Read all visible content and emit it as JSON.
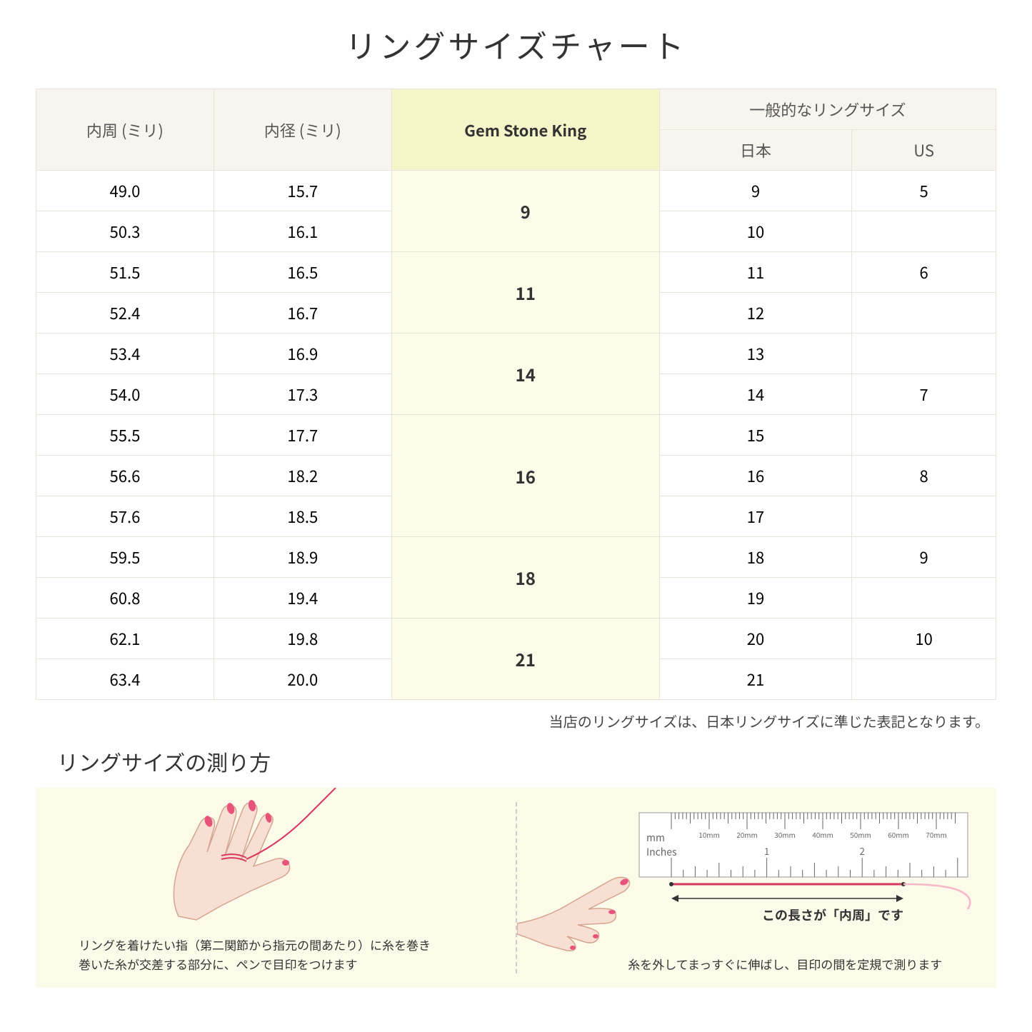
{
  "title": "リングサイズチャート",
  "headers": {
    "circumference": "内周 (ミリ)",
    "diameter": "内径 (ミリ)",
    "gsk": "Gem Stone King",
    "common": "一般的なリングサイズ",
    "japan": "日本",
    "us": "US"
  },
  "rows": [
    {
      "circ": "49.0",
      "diam": "15.7",
      "jp": "9",
      "us": "5"
    },
    {
      "circ": "50.3",
      "diam": "16.1",
      "jp": "10",
      "us": ""
    },
    {
      "circ": "51.5",
      "diam": "16.5",
      "jp": "11",
      "us": "6"
    },
    {
      "circ": "52.4",
      "diam": "16.7",
      "jp": "12",
      "us": ""
    },
    {
      "circ": "53.4",
      "diam": "16.9",
      "jp": "13",
      "us": ""
    },
    {
      "circ": "54.0",
      "diam": "17.3",
      "jp": "14",
      "us": "7"
    },
    {
      "circ": "55.5",
      "diam": "17.7",
      "jp": "15",
      "us": ""
    },
    {
      "circ": "56.6",
      "diam": "18.2",
      "jp": "16",
      "us": "8"
    },
    {
      "circ": "57.6",
      "diam": "18.5",
      "jp": "17",
      "us": ""
    },
    {
      "circ": "59.5",
      "diam": "18.9",
      "jp": "18",
      "us": "9"
    },
    {
      "circ": "60.8",
      "diam": "19.4",
      "jp": "19",
      "us": ""
    },
    {
      "circ": "62.1",
      "diam": "19.8",
      "jp": "20",
      "us": "10"
    },
    {
      "circ": "63.4",
      "diam": "20.0",
      "jp": "21",
      "us": ""
    }
  ],
  "gsk_sizes": [
    "9",
    "11",
    "14",
    "16",
    "18",
    "21"
  ],
  "gsk_spans": [
    2,
    2,
    2,
    3,
    2,
    2
  ],
  "note": "当店のリングサイズは、日本リングサイズに準じた表記となります。",
  "subtitle": "リングサイズの測り方",
  "instruction_left": "リングを着けたい指（第二関節から指元の間あたり）に糸を巻き\n巻いた糸が交差する部分に、ペンで目印をつけます",
  "instruction_right": "糸を外してまっすぐに伸ばし、目印の間を定規で測ります",
  "arrow_label": "この長さが「内周」です",
  "ruler_labels": {
    "mm": "mm",
    "inches": "Inches",
    "mm_marks": [
      "10mm",
      "20mm",
      "30mm",
      "40mm",
      "50mm",
      "60mm",
      "70mm"
    ],
    "inch_marks": [
      "1",
      "2"
    ]
  },
  "colors": {
    "header_bg": "#f7f5ee",
    "gsk_header_bg": "#f6f4c9",
    "gsk_cell_bg": "#fdfce8",
    "border": "#e8e4da",
    "inst_bg": "#fcfae9",
    "hand_fill": "#f8dfd3",
    "hand_stroke": "#d4a590",
    "nail": "#e8537a",
    "thread": "#d63960"
  }
}
